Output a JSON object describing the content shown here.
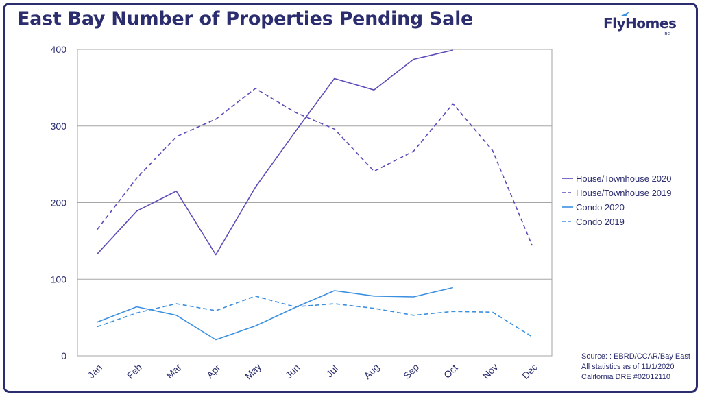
{
  "header": {
    "title": "East Bay Number of Properties Pending Sale",
    "logo_text": "FlyHomes",
    "logo_sub": "inc"
  },
  "source": {
    "line1": "Source: : EBRD/CCAR/Bay East",
    "line2": "All statistics as of 11/1/2020",
    "line3": "California DRE #02012110"
  },
  "colors": {
    "house": "#5b4cb8",
    "condo": "#3b8fe0",
    "grid": "#a6a6a6",
    "text": "#2b2d6e"
  },
  "chart_data": {
    "type": "line",
    "title": "East Bay Number of Properties Pending Sale",
    "xlabel": "",
    "ylabel": "",
    "categories": [
      "Jan",
      "Feb",
      "Mar",
      "Apr",
      "May",
      "Jun",
      "Jul",
      "Aug",
      "Sep",
      "Oct",
      "Nov",
      "Dec"
    ],
    "ylim": [
      0,
      400
    ],
    "yticks": [
      0,
      100,
      200,
      300,
      400
    ],
    "grid": true,
    "legend_position": "right",
    "series": [
      {
        "name": "House/Townhouse 2020",
        "style": "solid",
        "color": "#5b4cb8",
        "values": [
          133,
          189,
          215,
          132,
          220,
          292,
          362,
          347,
          387,
          399,
          null,
          null
        ]
      },
      {
        "name": "House/Townhouse 2019",
        "style": "dashed",
        "color": "#5b4cb8",
        "values": [
          165,
          232,
          286,
          309,
          349,
          318,
          296,
          241,
          267,
          329,
          268,
          144
        ]
      },
      {
        "name": "Condo 2020",
        "style": "solid",
        "color": "#3b8fe0",
        "values": [
          44,
          64,
          53,
          21,
          39,
          63,
          85,
          78,
          77,
          89,
          null,
          null
        ]
      },
      {
        "name": "Condo 2019",
        "style": "dashed",
        "color": "#3b8fe0",
        "values": [
          38,
          56,
          68,
          59,
          78,
          64,
          68,
          62,
          53,
          58,
          57,
          25
        ]
      }
    ]
  }
}
